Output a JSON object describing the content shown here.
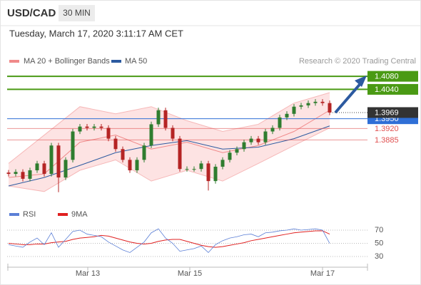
{
  "header": {
    "symbol": "USD/CAD",
    "timeframe": "30 MIN",
    "datetime": "Tuesday, March 17, 2020 3:11:17 AM CET"
  },
  "chart_data": [
    {
      "type": "candlestick",
      "source": "Research © 2020 Trading Central",
      "ylim": [
        1.372,
        1.4113
      ],
      "up_color": "#2f7d2f",
      "down_color": "#b52424",
      "opens": [
        1.3785,
        1.3781,
        1.3787,
        1.3766,
        1.3792,
        1.3813,
        1.3781,
        1.3868,
        1.377,
        1.3824,
        1.3911,
        1.3926,
        1.3922,
        1.3926,
        1.3922,
        1.3889,
        1.3857,
        1.3824,
        1.3792,
        1.3824,
        1.3868,
        1.3933,
        1.3976,
        1.3922,
        1.3889,
        1.3796,
        1.3796,
        1.3796,
        1.3813,
        1.3759,
        1.3803,
        1.3824,
        1.3846,
        1.3857,
        1.3878,
        1.3889,
        1.3878,
        1.3911,
        1.3922,
        1.3954,
        1.3965,
        1.3987,
        1.3991,
        1.3998,
        1.4002,
        1.3998
      ],
      "highs": [
        1.3793,
        1.3795,
        1.3795,
        1.38,
        1.3821,
        1.3821,
        1.3876,
        1.3876,
        1.3832,
        1.3919,
        1.3934,
        1.3934,
        1.3934,
        1.3934,
        1.393,
        1.3897,
        1.3865,
        1.3832,
        1.3832,
        1.3876,
        1.3941,
        1.3984,
        1.3984,
        1.393,
        1.3897,
        1.3804,
        1.3804,
        1.3821,
        1.3821,
        1.3811,
        1.3832,
        1.3854,
        1.3865,
        1.3886,
        1.3897,
        1.3897,
        1.3919,
        1.393,
        1.3962,
        1.3973,
        1.3995,
        1.3999,
        1.4006,
        1.401,
        1.401,
        1.4006
      ],
      "lows": [
        1.3773,
        1.3773,
        1.3758,
        1.3758,
        1.3784,
        1.3773,
        1.3773,
        1.3725,
        1.3762,
        1.3816,
        1.3903,
        1.3914,
        1.3914,
        1.3914,
        1.3881,
        1.3849,
        1.3816,
        1.3784,
        1.3784,
        1.3816,
        1.386,
        1.3925,
        1.3914,
        1.3881,
        1.3788,
        1.3788,
        1.3788,
        1.3788,
        1.373,
        1.3751,
        1.3795,
        1.3816,
        1.3838,
        1.3849,
        1.387,
        1.387,
        1.387,
        1.3903,
        1.3914,
        1.3946,
        1.3957,
        1.3979,
        1.3983,
        1.399,
        1.399,
        1.3961
      ],
      "closes": [
        1.3781,
        1.3787,
        1.3766,
        1.3792,
        1.3813,
        1.3781,
        1.3868,
        1.377,
        1.3824,
        1.3911,
        1.3926,
        1.3922,
        1.3926,
        1.3922,
        1.3889,
        1.3857,
        1.3824,
        1.3792,
        1.3824,
        1.3868,
        1.3933,
        1.3976,
        1.3922,
        1.3889,
        1.3796,
        1.3796,
        1.3796,
        1.3813,
        1.3759,
        1.3803,
        1.3824,
        1.3846,
        1.3857,
        1.3878,
        1.3889,
        1.3878,
        1.3911,
        1.3922,
        1.3954,
        1.3965,
        1.3987,
        1.3991,
        1.3998,
        1.4002,
        1.3998,
        1.3969
      ],
      "bands": {
        "name": "MA 20 + Bollinger Bands",
        "color": "#f08a8a",
        "fill": "#fde3e3",
        "x": [
          0,
          5,
          10,
          15,
          20,
          25,
          30,
          35,
          40,
          45
        ],
        "upper": [
          1.3813,
          1.39,
          1.3987,
          1.3965,
          1.3987,
          1.3944,
          1.3911,
          1.3933,
          1.3998,
          1.403
        ],
        "middle": [
          1.377,
          1.3781,
          1.3878,
          1.39,
          1.3857,
          1.3878,
          1.3846,
          1.3868,
          1.3911,
          1.3976
        ],
        "lower": [
          1.3744,
          1.3727,
          1.3792,
          1.3824,
          1.3759,
          1.3792,
          1.3759,
          1.3813,
          1.3868,
          1.3922
        ]
      },
      "ma50": {
        "name": "MA 50",
        "color": "#2c5aa0",
        "x": [
          0,
          5,
          10,
          15,
          20,
          25,
          30,
          35,
          40,
          45
        ],
        "values": [
          1.3744,
          1.377,
          1.3807,
          1.3846,
          1.3868,
          1.3883,
          1.3857,
          1.3863,
          1.3889,
          1.3928
        ]
      },
      "levels": [
        {
          "value": 1.408,
          "label": "1.4080",
          "color": "#4a9a14",
          "boxed": true
        },
        {
          "value": 1.404,
          "label": "1.4040",
          "color": "#4a9a14",
          "boxed": true
        },
        {
          "value": 1.395,
          "label": "1.3950",
          "color": "#2f6fd6",
          "boxed": true
        },
        {
          "value": 1.392,
          "label": "1.3920",
          "color": "#e05050",
          "boxed": false
        },
        {
          "value": 1.3885,
          "label": "1.3885",
          "color": "#e05050",
          "boxed": false
        }
      ],
      "current": {
        "value": 1.3969,
        "label": "1.3969",
        "color": "#333333"
      }
    },
    {
      "type": "line",
      "ylim": [
        20,
        75
      ],
      "yticks": [
        30,
        50,
        70
      ],
      "xlim": [
        -0.2,
        50.3
      ],
      "xticks": [
        {
          "value": 11.1,
          "label": "Mar 13"
        },
        {
          "value": 25.4,
          "label": "Mar 15"
        },
        {
          "value": 44,
          "label": "Mar 17"
        }
      ],
      "series": [
        {
          "name": "RSI",
          "color": "#5b7fd6",
          "values": [
            48,
            46,
            44,
            52,
            58,
            48,
            66,
            44,
            56,
            68,
            70,
            64,
            62,
            60,
            52,
            46,
            40,
            36,
            44,
            52,
            66,
            72,
            58,
            50,
            38,
            40,
            42,
            46,
            36,
            48,
            54,
            58,
            60,
            63,
            64,
            60,
            66,
            67,
            69,
            70,
            72,
            70,
            71,
            72,
            70,
            50
          ]
        },
        {
          "name": "9MA",
          "color": "#e02020",
          "values": [
            50,
            49,
            48,
            48,
            49,
            49,
            51,
            52,
            53,
            56,
            58,
            59,
            60,
            62,
            61,
            58,
            55,
            52,
            50,
            49,
            50,
            53,
            55,
            56,
            56,
            53,
            50,
            47,
            45,
            44,
            45,
            47,
            49,
            51,
            54,
            56,
            58,
            60,
            62,
            64,
            66,
            67,
            68,
            69,
            69,
            64
          ]
        }
      ]
    }
  ]
}
